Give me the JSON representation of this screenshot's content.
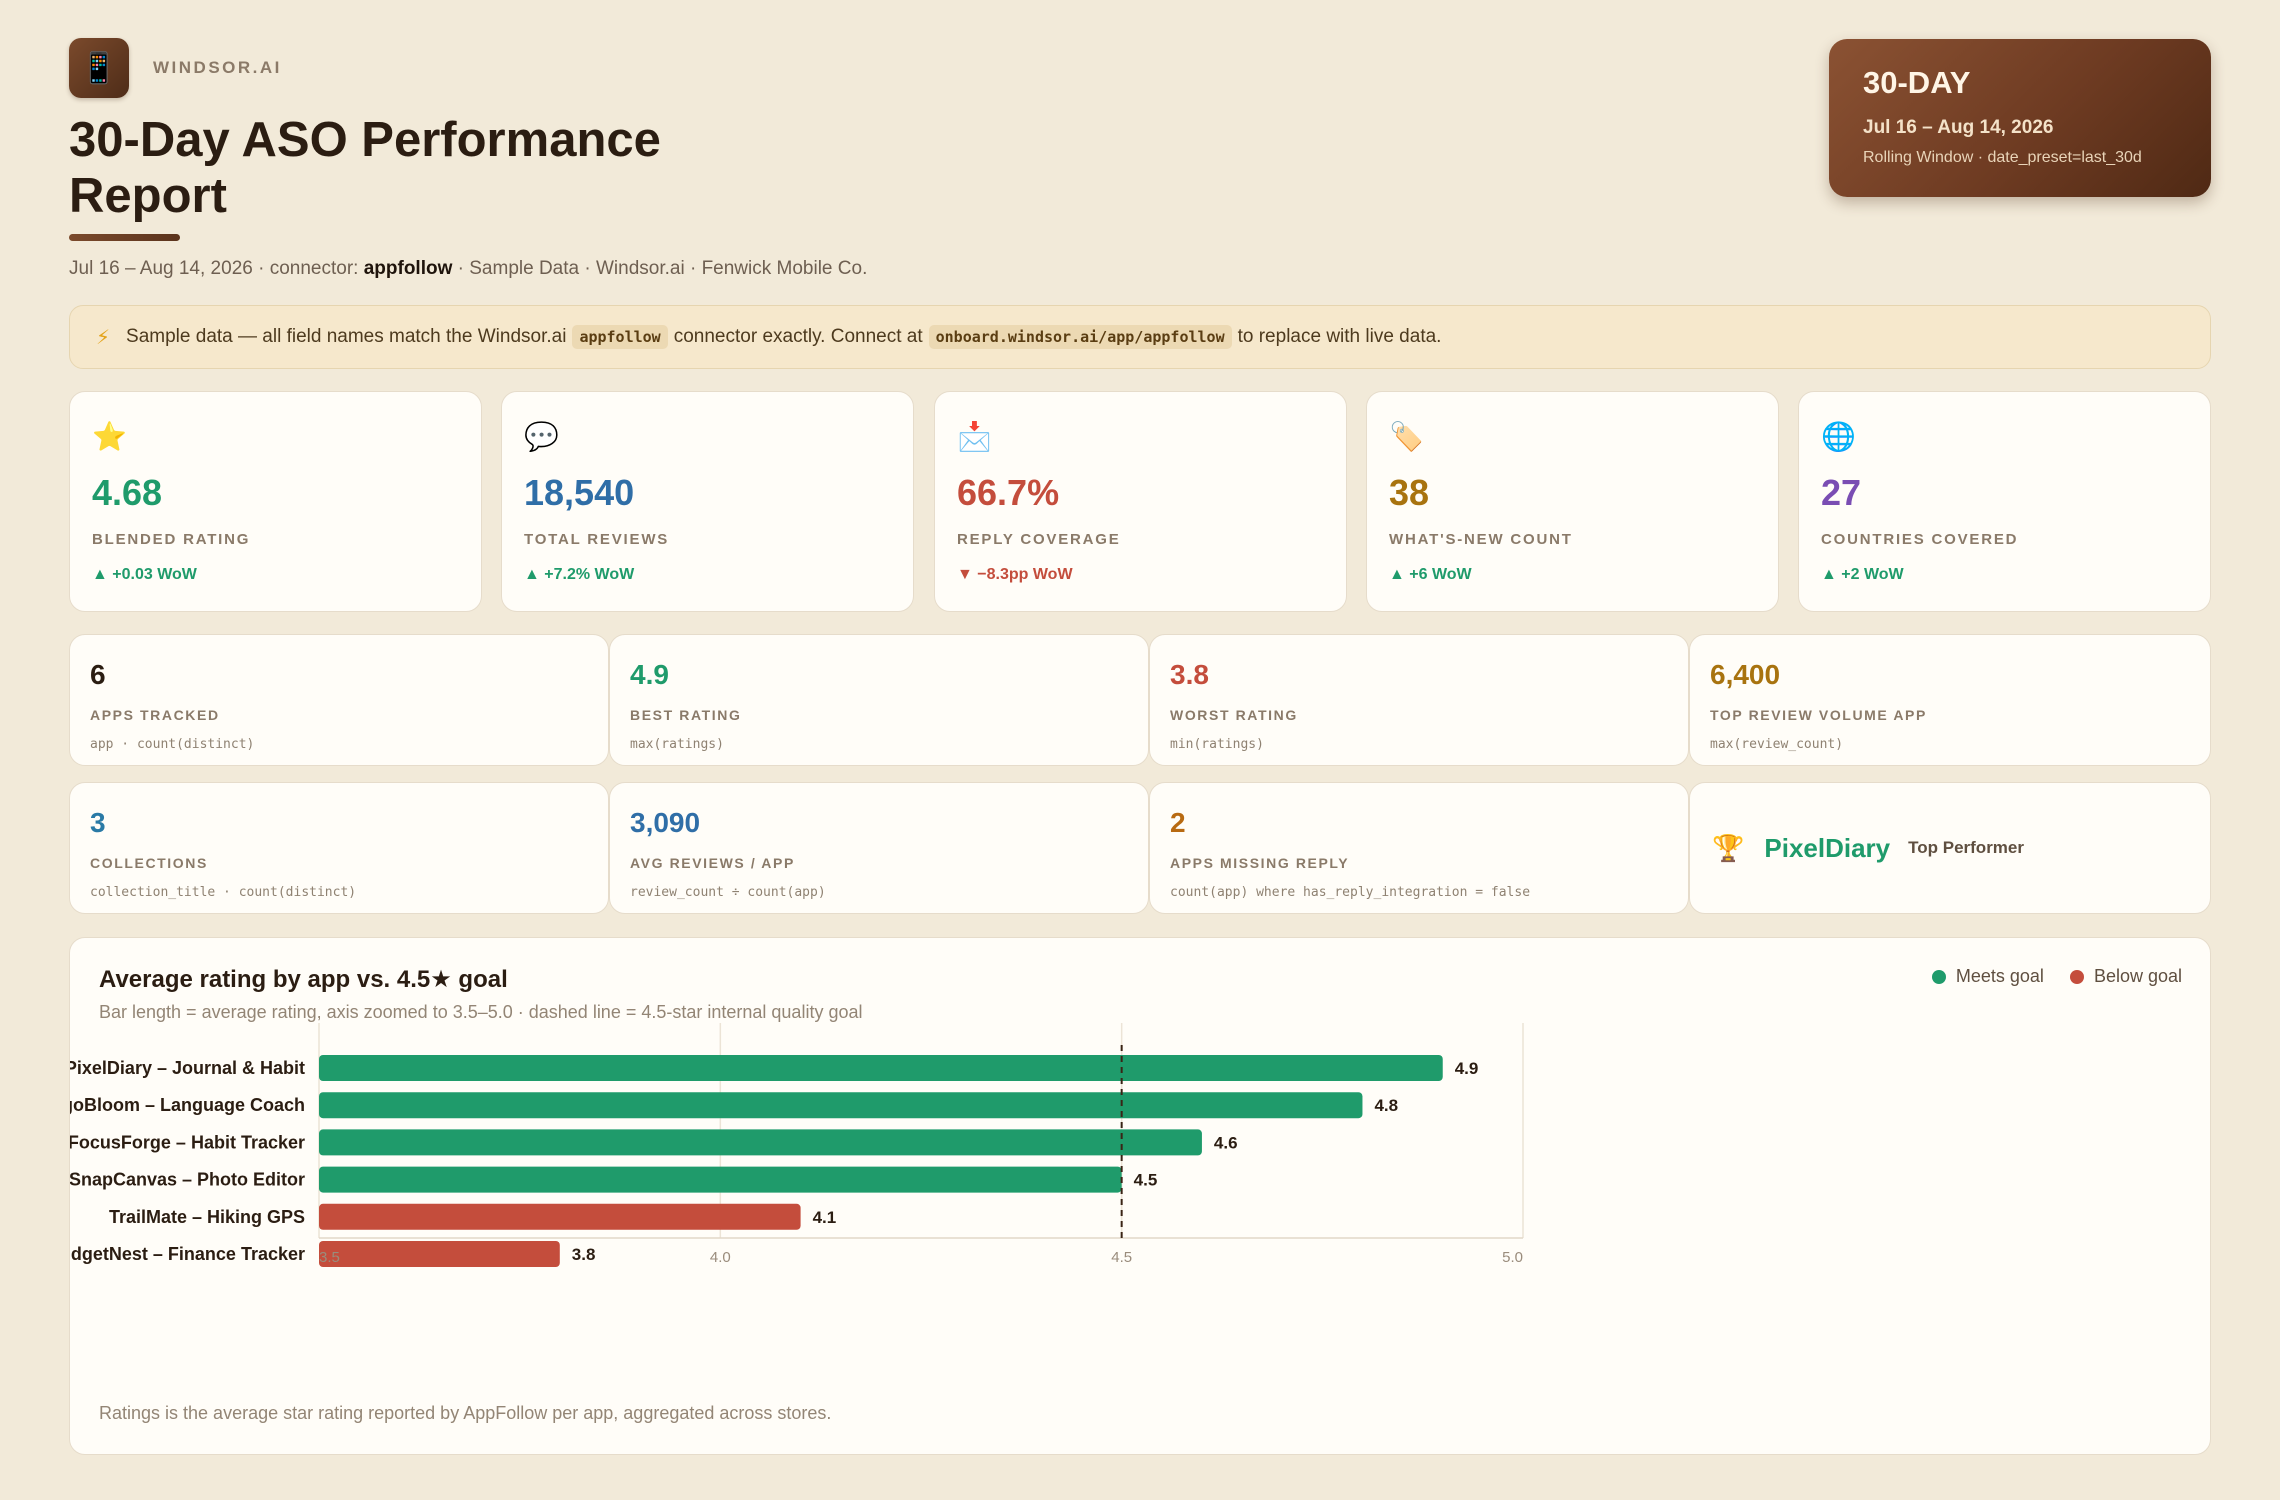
{
  "header": {
    "brand_icon": "mobile-phone-icon",
    "brand_glyph": "📱",
    "brand_name": "WINDSOR.AI",
    "title": "30-Day ASO Performance Report",
    "subline_pre": "Jul 16 – Aug 14, 2026 · connector: ",
    "subline_connector": "appfollow",
    "subline_post": " · Sample Data · Windsor.ai · Fenwick Mobile Co."
  },
  "period": {
    "label": "30-DAY",
    "range": "Jul 16 – Aug 14, 2026",
    "detail": "Rolling Window · date_preset=last_30d"
  },
  "notice": {
    "icon": "lightning-icon",
    "glyph": "⚡",
    "text_a": "Sample data — all field names match the Windsor.ai",
    "code_a": "appfollow",
    "text_b": "connector exactly. Connect at",
    "code_b": "onboard.windsor.ai/app/appfollow",
    "text_c": "to replace with live data."
  },
  "kpis": [
    {
      "icon": "star-icon",
      "glyph": "⭐",
      "value": "4.68",
      "label": "BLENDED RATING",
      "delta": "▲ +0.03 WoW",
      "trend": "up",
      "color": "#1f9b6b"
    },
    {
      "icon": "speech-bubble-icon",
      "glyph": "💬",
      "value": "18,540",
      "label": "TOTAL REVIEWS",
      "delta": "▲ +7.2% WoW",
      "trend": "up",
      "color": "#2f6ea7"
    },
    {
      "icon": "envelope-icon",
      "glyph": "📩",
      "value": "66.7%",
      "label": "REPLY COVERAGE",
      "delta": "▼ −8.3pp WoW",
      "trend": "down",
      "color": "#c44d3c"
    },
    {
      "icon": "tag-icon",
      "glyph": "🏷️",
      "value": "38",
      "label": "WHAT'S-NEW COUNT",
      "delta": "▲ +6 WoW",
      "trend": "up",
      "color": "#a8730f"
    },
    {
      "icon": "globe-icon",
      "glyph": "🌐",
      "value": "27",
      "label": "COUNTRIES COVERED",
      "delta": "▲ +2 WoW",
      "trend": "up",
      "color": "#7a4db3"
    }
  ],
  "minis": [
    {
      "value": "6",
      "label": "APPS TRACKED",
      "formula": "app · count(distinct)",
      "color": "#2b1d12"
    },
    {
      "value": "4.9",
      "label": "BEST RATING",
      "formula": "max(ratings)",
      "color": "#1f9b6b"
    },
    {
      "value": "3.8",
      "label": "WORST RATING",
      "formula": "min(ratings)",
      "color": "#c44d3c"
    },
    {
      "value": "6,400",
      "label": "TOP REVIEW VOLUME APP",
      "formula": "max(review_count)",
      "color": "#a8730f"
    },
    {
      "value": "3",
      "label": "COLLECTIONS",
      "formula": "collection_title · count(distinct)",
      "color": "#2a7aa6"
    },
    {
      "value": "3,090",
      "label": "AVG REVIEWS / APP",
      "formula": "review_count ÷ count(app)",
      "color": "#2f6ea7"
    },
    {
      "value": "2",
      "label": "APPS MISSING REPLY",
      "formula": "count(app) where has_reply_integration = false",
      "color": "#b86a12"
    }
  ],
  "top_performer": {
    "icon": "trophy-icon",
    "glyph": "🏆",
    "name": "PixelDiary",
    "tag": "Top Performer"
  },
  "colors": {
    "meets": "#1f9b6b",
    "below": "#c44d3c"
  },
  "chart_data": {
    "type": "bar",
    "orientation": "horizontal",
    "title": "Average rating by app vs. 4.5★ goal",
    "subtitle": "Bar length = average rating, axis zoomed to 3.5–5.0 · dashed line = 4.5-star internal quality goal",
    "footnote": "Ratings is the average star rating reported by AppFollow per app, aggregated across stores.",
    "categories": [
      "PixelDiary – Journal & Habit",
      "LingoBloom – Language Coach",
      "FocusForge – Habit Tracker",
      "SnapCanvas – Photo Editor",
      "TrailMate – Hiking GPS",
      "BudgetNest – Finance Tracker"
    ],
    "values": [
      4.9,
      4.8,
      4.6,
      4.5,
      4.1,
      3.8
    ],
    "status": [
      "meets",
      "meets",
      "meets",
      "meets",
      "below",
      "below"
    ],
    "legend": [
      {
        "name": "Meets goal",
        "key": "meets"
      },
      {
        "name": "Below goal",
        "key": "below"
      }
    ],
    "legend_position": "top-right",
    "goal": 4.5,
    "xlim": [
      3.5,
      5.0
    ],
    "xticks": [
      "3.5",
      "4.0",
      "4.5",
      "5.0"
    ],
    "grid": true
  }
}
